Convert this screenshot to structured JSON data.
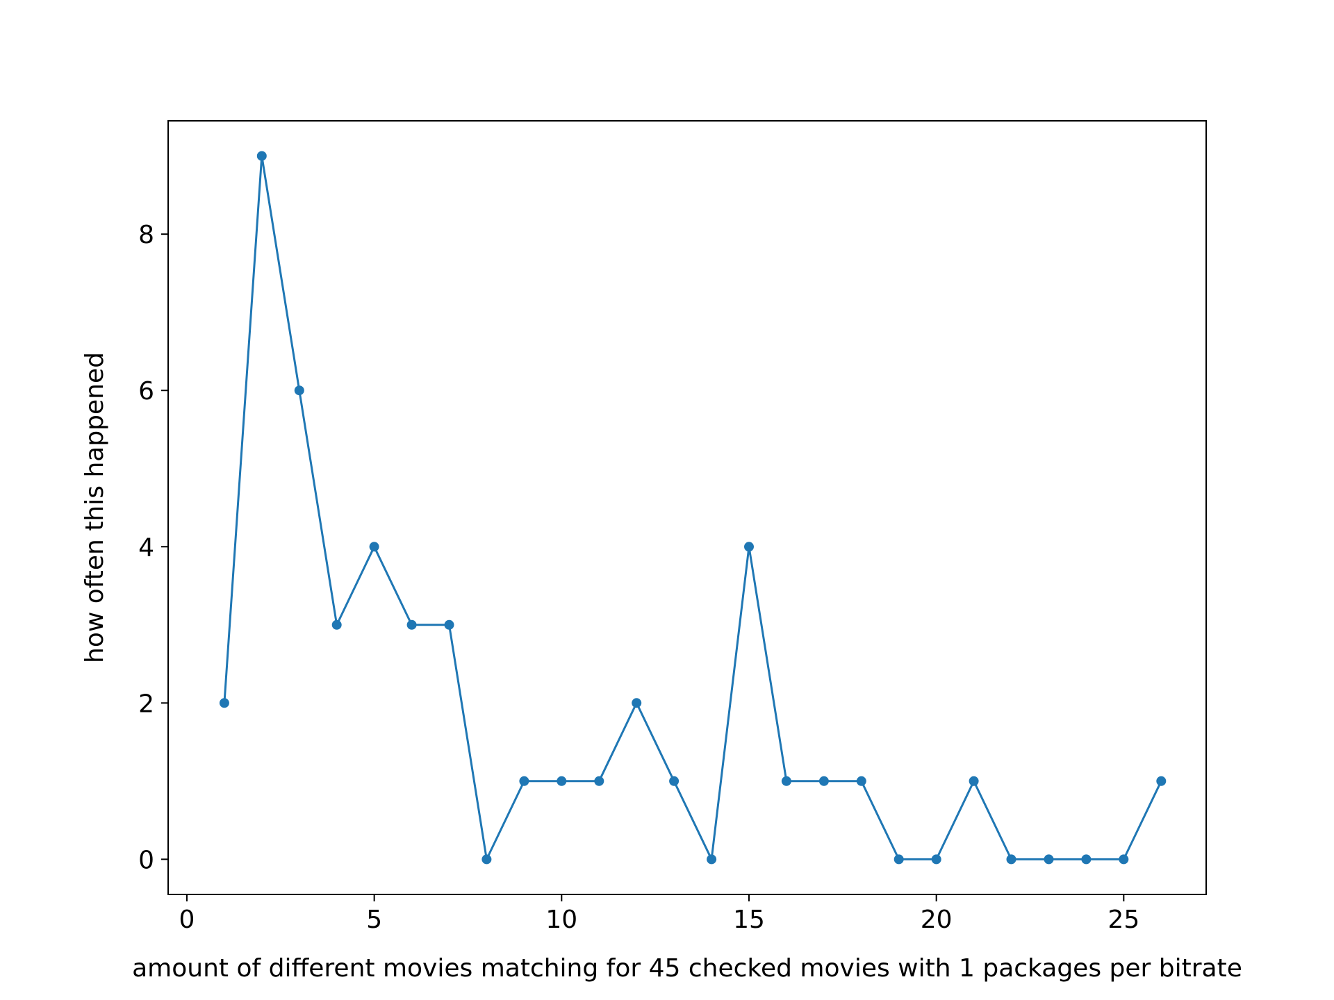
{
  "chart_data": {
    "type": "line",
    "title": "",
    "xlabel": "amount of different movies matching for 45 checked movies with 1 packages per bitrate",
    "ylabel": "how often this happened",
    "xlim": [
      -0.5,
      27.2
    ],
    "ylim": [
      -0.45,
      9.45
    ],
    "xticks": [
      0,
      5,
      10,
      15,
      20,
      25
    ],
    "yticks": [
      0,
      2,
      4,
      6,
      8
    ],
    "grid": false,
    "series": [
      {
        "x": [
          1,
          2,
          3,
          4,
          5,
          6,
          7,
          8,
          9,
          10,
          11,
          12,
          13,
          14,
          15,
          16,
          17,
          18,
          19,
          20,
          21,
          22,
          23,
          24,
          25,
          26
        ],
        "y": [
          2,
          9,
          6,
          3,
          4,
          3,
          3,
          0,
          1,
          1,
          1,
          2,
          1,
          0,
          4,
          1,
          1,
          1,
          0,
          0,
          1,
          0,
          0,
          0,
          0,
          1
        ],
        "color": "#1f77b4",
        "marker": "circle"
      }
    ]
  }
}
